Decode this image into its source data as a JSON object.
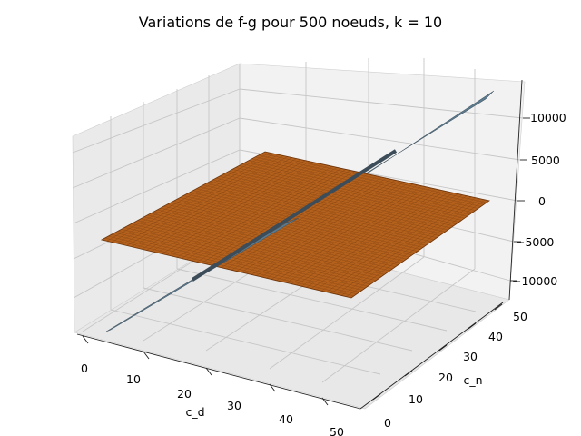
{
  "chart_data": {
    "type": "surface3d",
    "title": "Variations de f-g pour 500 noeuds, k = 10",
    "xlabel": "c_d",
    "ylabel": "c_n",
    "zlabel": "",
    "xlim": [
      0,
      50
    ],
    "ylim": [
      0,
      50
    ],
    "zlim": [
      -12000,
      12000
    ],
    "x_ticks": [
      0,
      10,
      20,
      30,
      40,
      50
    ],
    "y_ticks": [
      0,
      10,
      20,
      30,
      40,
      50
    ],
    "z_ticks": [
      -10000,
      -5000,
      0,
      5000,
      10000
    ],
    "x_tick_labels": [
      "0",
      "10",
      "20",
      "30",
      "40",
      "50"
    ],
    "y_tick_labels": [
      "0",
      "10",
      "20",
      "30",
      "40",
      "50"
    ],
    "z_tick_labels": [
      "−10000",
      "−5000",
      "0",
      "5000",
      "10000"
    ],
    "grid": true,
    "surfaces": [
      {
        "shape": "horizontal plane",
        "z": 0,
        "x_range": [
          0,
          50
        ],
        "y_range": [
          0,
          50
        ],
        "color": "#b3611d",
        "edge_color": "#6b3208"
      },
      {
        "shape": "vertical plane",
        "corners": [
          {
            "x": 0,
            "y": 0,
            "z": -11000
          },
          {
            "x": 50,
            "y": 50,
            "z": 13000
          }
        ],
        "color": "#5b7a8e",
        "edge_color": "#3c4c58"
      }
    ]
  }
}
